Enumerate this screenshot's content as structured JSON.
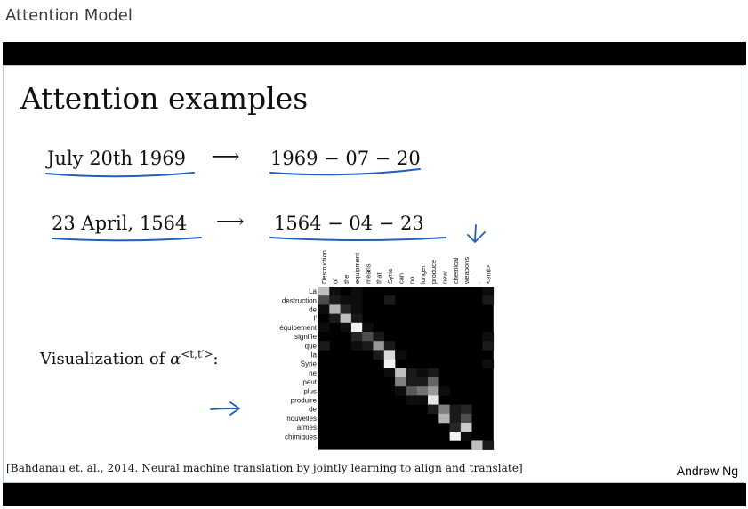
{
  "page_title": "Attention Model",
  "slide": {
    "title": "Attention examples",
    "examples": [
      {
        "input": "July 20th 1969",
        "arrow": "⟶",
        "output": "1969 − 07 − 20"
      },
      {
        "input": "23 April, 1564",
        "arrow": "⟶",
        "output": "1564 − 04 − 23"
      }
    ],
    "viz_label": "Visualization of ",
    "alpha_symbol": "α",
    "alpha_superscript": "<t,t′>",
    "colon": ":",
    "citation": "[Bahdanau et. al., 2014. Neural machine translation by jointly learning to align and translate]",
    "author": "Andrew Ng",
    "ink_color": "#1f5fbf"
  },
  "heatmap": {
    "columns": [
      "Destruction",
      "of",
      "the",
      "equipment",
      "means",
      "that",
      "Syria",
      "can",
      "no",
      "longer",
      "produce",
      "new",
      "chemical",
      "weapons",
      ".",
      "<end>"
    ],
    "rows": [
      "La",
      "destruction",
      "de",
      "l'",
      "équipement",
      "signifie",
      "que",
      "la",
      "Syrie",
      "ne",
      "peut",
      "plus",
      "produire",
      "de",
      "nouvelles",
      "armes",
      "chimiques",
      "."
    ],
    "weights": [
      [
        0.75,
        0.05,
        0.0,
        0.05,
        0.0,
        0.0,
        0.0,
        0.0,
        0.0,
        0.0,
        0.0,
        0.0,
        0.0,
        0.0,
        0.0,
        0.05
      ],
      [
        0.3,
        0.1,
        0.05,
        0.05,
        0.0,
        0.0,
        0.1,
        0.0,
        0.0,
        0.0,
        0.0,
        0.0,
        0.0,
        0.0,
        0.0,
        0.1
      ],
      [
        0.05,
        0.7,
        0.15,
        0.05,
        0.0,
        0.0,
        0.0,
        0.0,
        0.0,
        0.0,
        0.0,
        0.0,
        0.0,
        0.0,
        0.0,
        0.0
      ],
      [
        0.0,
        0.1,
        0.75,
        0.1,
        0.0,
        0.0,
        0.0,
        0.0,
        0.0,
        0.0,
        0.0,
        0.0,
        0.0,
        0.0,
        0.0,
        0.0
      ],
      [
        0.05,
        0.0,
        0.05,
        0.95,
        0.05,
        0.0,
        0.0,
        0.0,
        0.0,
        0.0,
        0.0,
        0.0,
        0.0,
        0.0,
        0.0,
        0.0
      ],
      [
        0.0,
        0.0,
        0.0,
        0.15,
        0.3,
        0.1,
        0.0,
        0.0,
        0.0,
        0.0,
        0.0,
        0.0,
        0.0,
        0.0,
        0.0,
        0.05
      ],
      [
        0.1,
        0.0,
        0.0,
        0.05,
        0.1,
        0.6,
        0.1,
        0.0,
        0.0,
        0.0,
        0.0,
        0.0,
        0.0,
        0.0,
        0.0,
        0.1
      ],
      [
        0.0,
        0.0,
        0.0,
        0.0,
        0.0,
        0.1,
        0.85,
        0.05,
        0.0,
        0.0,
        0.0,
        0.0,
        0.0,
        0.0,
        0.0,
        0.0
      ],
      [
        0.0,
        0.0,
        0.0,
        0.0,
        0.0,
        0.0,
        0.95,
        0.0,
        0.0,
        0.0,
        0.0,
        0.0,
        0.0,
        0.0,
        0.0,
        0.05
      ],
      [
        0.0,
        0.0,
        0.0,
        0.0,
        0.0,
        0.0,
        0.05,
        0.75,
        0.1,
        0.05,
        0.1,
        0.0,
        0.0,
        0.0,
        0.0,
        0.0
      ],
      [
        0.0,
        0.0,
        0.0,
        0.0,
        0.0,
        0.0,
        0.0,
        0.5,
        0.1,
        0.1,
        0.4,
        0.0,
        0.0,
        0.0,
        0.0,
        0.0
      ],
      [
        0.0,
        0.0,
        0.0,
        0.0,
        0.0,
        0.0,
        0.0,
        0.05,
        0.35,
        0.45,
        0.6,
        0.05,
        0.0,
        0.0,
        0.0,
        0.0
      ],
      [
        0.0,
        0.0,
        0.0,
        0.0,
        0.0,
        0.0,
        0.0,
        0.0,
        0.05,
        0.05,
        0.9,
        0.0,
        0.0,
        0.0,
        0.0,
        0.0
      ],
      [
        0.0,
        0.0,
        0.0,
        0.0,
        0.0,
        0.0,
        0.0,
        0.0,
        0.0,
        0.0,
        0.1,
        0.5,
        0.1,
        0.15,
        0.0,
        0.0
      ],
      [
        0.0,
        0.0,
        0.0,
        0.0,
        0.0,
        0.0,
        0.0,
        0.0,
        0.0,
        0.0,
        0.0,
        0.7,
        0.1,
        0.3,
        0.0,
        0.0
      ],
      [
        0.0,
        0.0,
        0.0,
        0.0,
        0.0,
        0.0,
        0.0,
        0.0,
        0.0,
        0.0,
        0.0,
        0.0,
        0.15,
        0.8,
        0.0,
        0.0
      ],
      [
        0.0,
        0.0,
        0.0,
        0.0,
        0.0,
        0.0,
        0.0,
        0.0,
        0.0,
        0.0,
        0.0,
        0.0,
        0.95,
        0.05,
        0.0,
        0.0
      ],
      [
        0.0,
        0.0,
        0.0,
        0.0,
        0.0,
        0.0,
        0.0,
        0.0,
        0.0,
        0.0,
        0.0,
        0.0,
        0.0,
        0.0,
        0.75,
        0.1
      ]
    ]
  }
}
